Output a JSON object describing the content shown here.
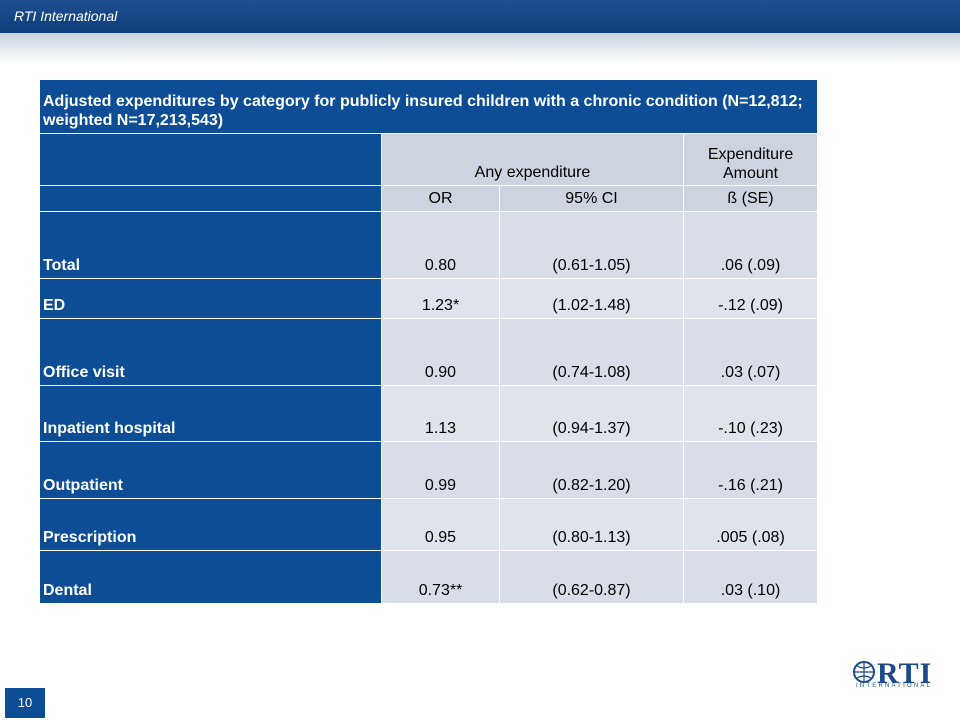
{
  "header": {
    "org_label": "RTI International"
  },
  "table": {
    "title": "Adjusted expenditures by category for publicly insured children with a chronic condition (N=12,812; weighted N=17,213,543)",
    "group_headers": {
      "any_expenditure": "Any expenditure",
      "expenditure_amount": "Expenditure Amount"
    },
    "sub_headers": {
      "or": "OR",
      "ci": "95% CI",
      "beta_se": "ß (SE)"
    },
    "rows": [
      {
        "label": "Total",
        "or": "0.80",
        "ci": "(0.61-1.05)",
        "beta": ".06 (.09)"
      },
      {
        "label": "ED",
        "or": "1.23*",
        "ci": "(1.02-1.48)",
        "beta": "-.12 (.09)"
      },
      {
        "label": "Office visit",
        "or": "0.90",
        "ci": "(0.74-1.08)",
        "beta": ".03 (.07)"
      },
      {
        "label": "Inpatient hospital",
        "or": "1.13",
        "ci": "(0.94-1.37)",
        "beta": "-.10 (.23)"
      },
      {
        "label": "Outpatient",
        "or": "0.99",
        "ci": "(0.82-1.20)",
        "beta": "-.16 (.21)"
      },
      {
        "label": "Prescription",
        "or": "0.95",
        "ci": "(0.80-1.13)",
        "beta": ".005 (.08)"
      },
      {
        "label": "Dental",
        "or": "0.73**",
        "ci": "(0.62-0.87)",
        "beta": ".03 (.10)"
      }
    ]
  },
  "footer": {
    "page_number": "10",
    "logo": {
      "text": "RTI",
      "subtext": "INTERNATIONAL",
      "color": "#1a4a8a"
    }
  },
  "colors": {
    "primary_blue": "#0d4d96",
    "cell_gray": "#d8dde8"
  }
}
